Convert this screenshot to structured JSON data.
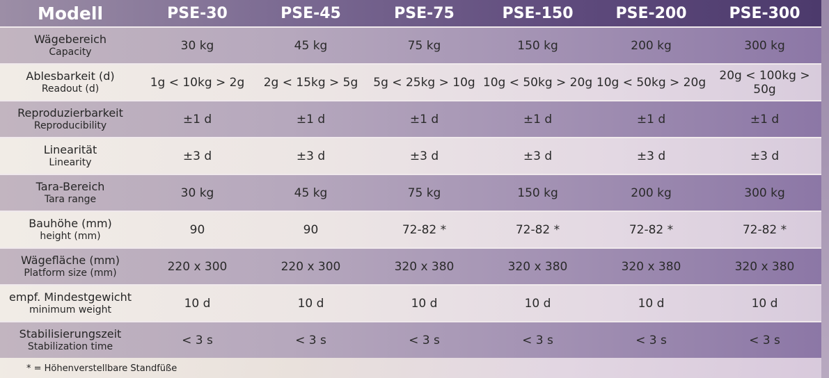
{
  "header": {
    "label": "Modell",
    "models": [
      "PSE-30",
      "PSE-45",
      "PSE-75",
      "PSE-150",
      "PSE-200",
      "PSE-300"
    ]
  },
  "rows": [
    {
      "de": "Wägebereich",
      "en": "Capacity",
      "values": [
        "30 kg",
        "45 kg",
        "75 kg",
        "150 kg",
        "200 kg",
        "300 kg"
      ]
    },
    {
      "de": "Ablesbarkeit (d)",
      "en": "Readout (d)",
      "values": [
        "1g < 10kg > 2g",
        "2g < 15kg > 5g",
        "5g < 25kg > 10g",
        "10g < 50kg > 20g",
        "10g < 50kg > 20g",
        "20g < 100kg > 50g"
      ]
    },
    {
      "de": "Reproduzierbarkeit",
      "en": "Reproducibility",
      "values": [
        "±1 d",
        "±1 d",
        "±1 d",
        "±1 d",
        "±1 d",
        "±1 d"
      ]
    },
    {
      "de": "Linearität",
      "en": "Linearity",
      "values": [
        "±3 d",
        "±3 d",
        "±3 d",
        "±3 d",
        "±3 d",
        "±3 d"
      ]
    },
    {
      "de": "Tara-Bereich",
      "en": "Tara range",
      "values": [
        "30 kg",
        "45 kg",
        "75 kg",
        "150 kg",
        "200 kg",
        "300 kg"
      ]
    },
    {
      "de": "Bauhöhe (mm)",
      "en": "height (mm)",
      "values": [
        "90",
        "90",
        "72-82 *",
        "72-82 *",
        "72-82 *",
        "72-82 *"
      ]
    },
    {
      "de": "Wägefläche (mm)",
      "en": "Platform size (mm)",
      "values": [
        "220 x 300",
        "220 x 300",
        "320 x 380",
        "320 x 380",
        "320 x 380",
        "320 x 380"
      ]
    },
    {
      "de": "empf. Mindestgewicht",
      "en": "minimum weight",
      "values": [
        "10 d",
        "10 d",
        "10 d",
        "10 d",
        "10 d",
        "10 d"
      ]
    },
    {
      "de": "Stabilisierungszeit",
      "en": "Stabilization time",
      "values": [
        "< 3 s",
        "< 3 s",
        "< 3 s",
        "< 3 s",
        "< 3 s",
        "< 3 s"
      ]
    }
  ],
  "footnote": "* = Höhenverstellbare Standfüße"
}
